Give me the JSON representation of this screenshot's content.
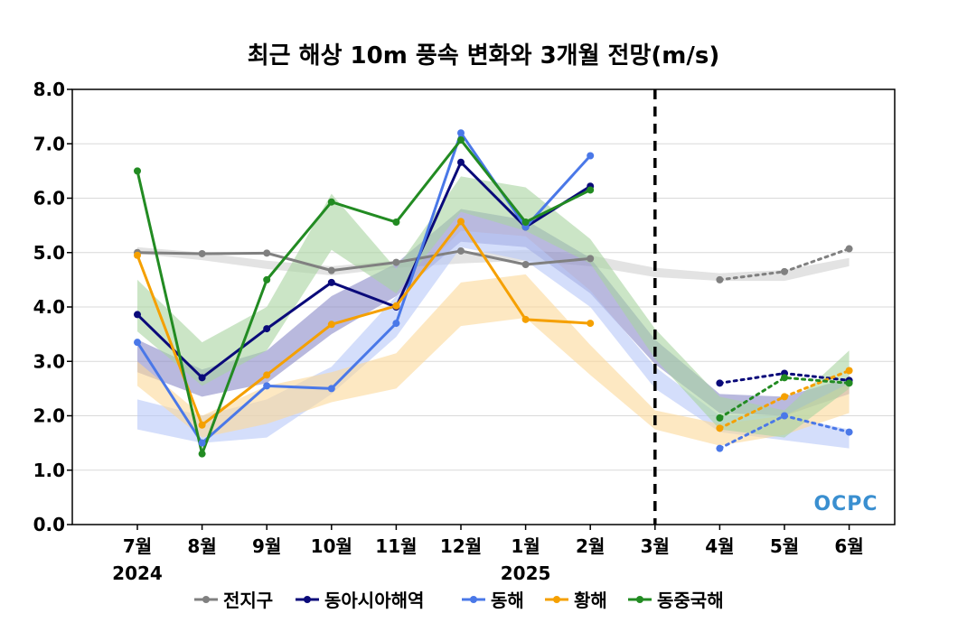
{
  "chart_data": {
    "type": "line",
    "title": "최근 해상 10m 풍속 변화와 3개월 전망(m/s)",
    "categories": [
      "7월",
      "8월",
      "9월",
      "10월",
      "11월",
      "12월",
      "1월",
      "2월",
      "3월",
      "4월",
      "5월",
      "6월"
    ],
    "year_labels": [
      {
        "category": "7월",
        "label": "2024"
      },
      {
        "category": "1월",
        "label": "2025"
      }
    ],
    "ylim": [
      0,
      8
    ],
    "yticks": [
      "0.0",
      "1.0",
      "2.0",
      "3.0",
      "4.0",
      "5.0",
      "6.0",
      "7.0",
      "8.0"
    ],
    "grid": "horizontal",
    "forecast_start": "3월",
    "legend_position": "bottom",
    "watermark": "OCPC",
    "series": [
      {
        "name": "전지구",
        "color": "#808080",
        "band_color": "#d0d0d0",
        "observed": [
          5.0,
          4.98,
          4.99,
          4.67,
          4.82,
          5.03,
          4.78,
          4.89
        ],
        "forecast": [
          null,
          null,
          null,
          null,
          null,
          null,
          null,
          null,
          null,
          4.5,
          4.65,
          5.07
        ],
        "band_upper": [
          5.1,
          5.0,
          4.85,
          4.75,
          4.85,
          5.0,
          5.05,
          4.95,
          4.72,
          4.62,
          4.68,
          4.9
        ],
        "band_lower": [
          4.98,
          4.86,
          4.7,
          4.58,
          4.72,
          4.8,
          4.85,
          4.75,
          4.55,
          4.48,
          4.48,
          4.75
        ]
      },
      {
        "name": "동아시아해역",
        "color": "#0a0a7a",
        "band_color": "#8a8ac8",
        "observed": [
          3.86,
          2.7,
          3.6,
          4.45,
          4.0,
          6.66,
          5.47,
          6.22
        ],
        "forecast": [
          null,
          null,
          null,
          null,
          null,
          null,
          null,
          null,
          null,
          2.6,
          2.78,
          2.65
        ],
        "band_upper": [
          3.4,
          2.85,
          3.2,
          4.2,
          4.8,
          5.8,
          5.6,
          4.9,
          3.4,
          2.4,
          2.35,
          2.7
        ],
        "band_lower": [
          2.8,
          2.35,
          2.6,
          3.5,
          4.2,
          5.2,
          5.1,
          4.25,
          2.95,
          2.05,
          2.0,
          2.4
        ]
      },
      {
        "name": "동해",
        "color": "#4a78e8",
        "band_color": "#b8c8f8",
        "observed": [
          3.35,
          1.5,
          2.55,
          2.5,
          3.7,
          7.2,
          5.47,
          6.78
        ],
        "forecast": [
          null,
          null,
          null,
          null,
          null,
          null,
          null,
          null,
          null,
          1.4,
          2.0,
          1.7
        ],
        "band_upper": [
          2.3,
          2.0,
          2.3,
          2.9,
          4.2,
          5.4,
          5.3,
          4.3,
          2.9,
          2.0,
          2.0,
          1.75
        ],
        "band_lower": [
          1.75,
          1.5,
          1.6,
          2.4,
          3.45,
          5.1,
          4.85,
          4.0,
          2.5,
          1.7,
          1.55,
          1.4
        ]
      },
      {
        "name": "황해",
        "color": "#f5a000",
        "band_color": "#fcd99a",
        "observed": [
          4.95,
          1.83,
          2.75,
          3.68,
          4.02,
          5.57,
          3.77,
          3.7
        ],
        "forecast": [
          null,
          null,
          null,
          null,
          null,
          null,
          null,
          null,
          null,
          1.77,
          2.35,
          2.83
        ],
        "band_upper": [
          3.0,
          2.0,
          2.55,
          2.8,
          3.15,
          4.45,
          4.6,
          3.3,
          2.1,
          1.85,
          2.0,
          2.6
        ],
        "band_lower": [
          2.55,
          1.6,
          1.85,
          2.25,
          2.5,
          3.65,
          3.8,
          2.75,
          1.75,
          1.45,
          1.65,
          2.05
        ]
      },
      {
        "name": "동중국해",
        "color": "#228b22",
        "band_color": "#a8d4a0",
        "observed": [
          6.5,
          1.3,
          4.5,
          5.93,
          5.56,
          7.07,
          5.56,
          6.15
        ],
        "forecast": [
          null,
          null,
          null,
          null,
          null,
          null,
          null,
          null,
          null,
          1.96,
          2.7,
          2.6
        ],
        "band_upper": [
          4.5,
          3.35,
          4.0,
          6.08,
          4.7,
          6.4,
          6.2,
          5.25,
          3.6,
          2.35,
          2.1,
          3.2
        ],
        "band_lower": [
          3.55,
          2.55,
          3.2,
          5.05,
          4.25,
          5.75,
          5.4,
          4.8,
          3.05,
          1.75,
          1.6,
          2.5
        ]
      }
    ]
  }
}
